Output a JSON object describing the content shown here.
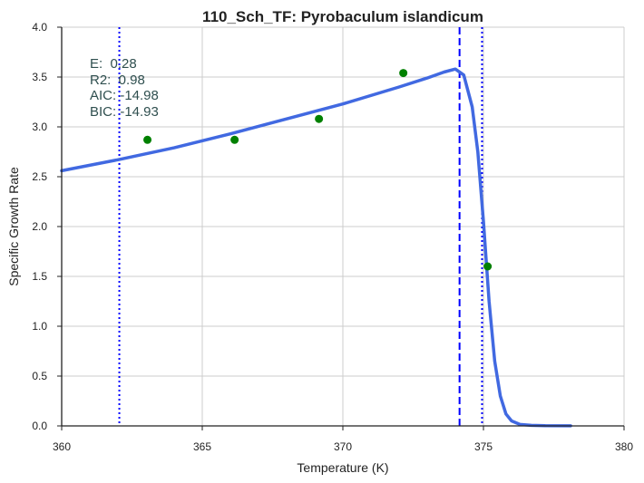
{
  "chart_data": {
    "type": "scatter",
    "title": "110_Sch_TF: Pyrobaculum islandicum",
    "xlabel": "Temperature (K)",
    "ylabel": "Specific Growth Rate",
    "xlim": [
      360,
      380
    ],
    "ylim": [
      0.0,
      4.0
    ],
    "x_ticks": [
      360,
      365,
      370,
      375,
      380
    ],
    "y_ticks": [
      0.0,
      0.5,
      1.0,
      1.5,
      2.0,
      2.5,
      3.0,
      3.5,
      4.0
    ],
    "grid": "horizontal and vertical at major ticks",
    "series": [
      {
        "kind": "points",
        "color": "#008000",
        "x": [
          363.05,
          366.15,
          369.15,
          372.15,
          375.15
        ],
        "y": [
          2.87,
          2.87,
          3.08,
          3.54,
          1.6
        ]
      },
      {
        "kind": "fitted-curve",
        "color": "#4169e1",
        "x": [
          360.0,
          362.0,
          364.0,
          366.0,
          368.0,
          370.0,
          372.0,
          373.0,
          373.6,
          374.0,
          374.3,
          374.6,
          374.8,
          375.0,
          375.2,
          375.4,
          375.6,
          375.8,
          376.0,
          376.3,
          376.7,
          377.2,
          378.1
        ],
        "y": [
          2.56,
          2.67,
          2.79,
          2.93,
          3.08,
          3.23,
          3.4,
          3.49,
          3.55,
          3.58,
          3.52,
          3.2,
          2.75,
          2.05,
          1.25,
          0.65,
          0.3,
          0.12,
          0.05,
          0.015,
          0.005,
          0.002,
          0.001
        ]
      }
    ],
    "vertical_lines": [
      {
        "x": 362.05,
        "style": "dotted",
        "color": "#0000ff"
      },
      {
        "x": 374.15,
        "style": "dashed",
        "color": "#0000ff"
      },
      {
        "x": 374.95,
        "style": "dotted",
        "color": "#0000ff"
      }
    ],
    "annotations": [
      "E:  0.28",
      "R2:  0.98",
      "AIC: -14.98",
      "BIC: -14.93"
    ]
  }
}
